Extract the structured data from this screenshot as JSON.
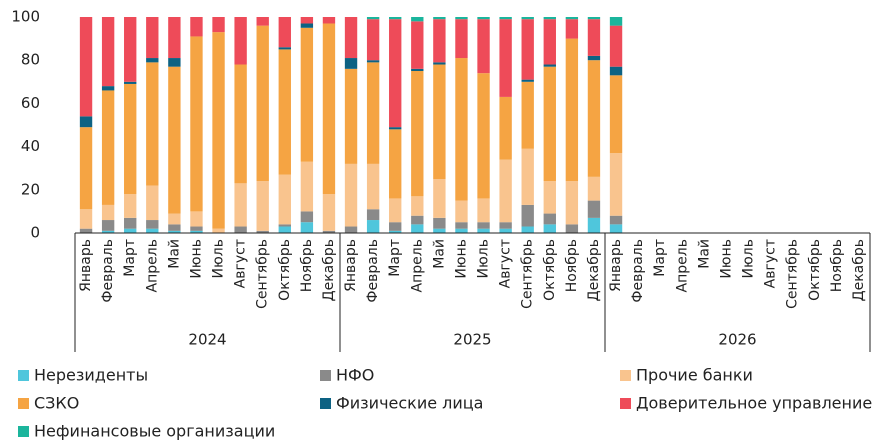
{
  "chart_data": {
    "type": "stacked_bar",
    "categories": [
      "Январь",
      "Февраль",
      "Март",
      "Апрель",
      "Май",
      "Июнь",
      "Июль",
      "Август",
      "Сентябрь",
      "Октябрь",
      "Ноябрь",
      "Декабрь",
      "Январь",
      "Февраль",
      "Март",
      "Апрель",
      "Май",
      "Июнь",
      "Июль",
      "Август",
      "Сентябрь",
      "Октябрь",
      "Ноябрь",
      "Декабрь",
      "Январь",
      "Февраль",
      "Март",
      "Апрель",
      "Май",
      "Июнь",
      "Июль",
      "Август",
      "Сентябрь",
      "Октябрь",
      "Ноябрь",
      "Декабрь"
    ],
    "years": [
      "2024",
      "2025",
      "2026"
    ],
    "ylim": [
      0,
      100
    ],
    "yticks": [
      0,
      20,
      40,
      60,
      80,
      100
    ],
    "series": [
      {
        "name": "Нерезиденты",
        "color": "#4fc6dc",
        "values": [
          0,
          1,
          2,
          2,
          1,
          1,
          0,
          0,
          0,
          3,
          5,
          0,
          0,
          6,
          1,
          4,
          2,
          2,
          2,
          2,
          3,
          4,
          0,
          7,
          4,
          null,
          null,
          null,
          null,
          null,
          null,
          null,
          null,
          null,
          null,
          null
        ]
      },
      {
        "name": "НФО",
        "color": "#8a8a8a",
        "values": [
          2,
          5,
          5,
          4,
          3,
          2,
          0,
          3,
          1,
          1,
          5,
          1,
          3,
          5,
          4,
          4,
          5,
          3,
          3,
          3,
          10,
          5,
          4,
          8,
          4,
          null,
          null,
          null,
          null,
          null,
          null,
          null,
          null,
          null,
          null,
          null
        ]
      },
      {
        "name": "Прочие банки",
        "color": "#f9c48e",
        "values": [
          9,
          7,
          11,
          16,
          5,
          7,
          2,
          20,
          23,
          23,
          23,
          17,
          29,
          21,
          11,
          9,
          18,
          10,
          11,
          29,
          26,
          15,
          20,
          11,
          29,
          null,
          null,
          null,
          null,
          null,
          null,
          null,
          null,
          null,
          null,
          null
        ]
      },
      {
        "name": "СЗКО",
        "color": "#f5a443",
        "values": [
          38,
          53,
          51,
          57,
          68,
          81,
          91,
          55,
          72,
          58,
          62,
          79,
          44,
          47,
          32,
          58,
          53,
          66,
          58,
          29,
          31,
          53,
          66,
          54,
          36,
          null,
          null,
          null,
          null,
          null,
          null,
          null,
          null,
          null,
          null,
          null
        ]
      },
      {
        "name": "Физические лица",
        "color": "#0d6283",
        "values": [
          5,
          2,
          1,
          2,
          4,
          0,
          0,
          0,
          0,
          1,
          2,
          0,
          5,
          1,
          1,
          1,
          1,
          0,
          0,
          0,
          1,
          1,
          0,
          2,
          4,
          null,
          null,
          null,
          null,
          null,
          null,
          null,
          null,
          null,
          null,
          null
        ]
      },
      {
        "name": "Доверительное управление",
        "color": "#ee4b59",
        "values": [
          46,
          32,
          30,
          19,
          19,
          9,
          7,
          22,
          4,
          14,
          3,
          3,
          19,
          19,
          50,
          22,
          20,
          18,
          25,
          36,
          28,
          21,
          9,
          17,
          19,
          null,
          null,
          null,
          null,
          null,
          null,
          null,
          null,
          null,
          null,
          null
        ]
      },
      {
        "name": "Нефинансовые организации",
        "color": "#1bb59c",
        "values": [
          0,
          0,
          0,
          0,
          0,
          0,
          0,
          0,
          0,
          0,
          0,
          0,
          0,
          1,
          1,
          2,
          1,
          1,
          1,
          1,
          1,
          1,
          1,
          1,
          4,
          null,
          null,
          null,
          null,
          null,
          null,
          null,
          null,
          null,
          null,
          null
        ]
      }
    ]
  }
}
